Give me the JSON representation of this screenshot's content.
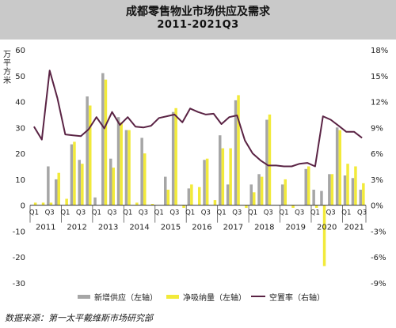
{
  "title": "成都零售物业市场供应及需求",
  "subtitle": "2011-2021Q3",
  "unit_label": "万平方米",
  "source": "数据来源：第一太平戴维斯市场研究部",
  "colors": {
    "header_bg": "#c9c9c9",
    "supply": "#a6a6a6",
    "absorption": "#f2ea3a",
    "vacancy": "#5a2344"
  },
  "legend": {
    "supply": "新增供应（左轴）",
    "absorption": "净吸纳量（左轴）",
    "vacancy": "空置率（右轴）"
  },
  "chart_data": {
    "type": "bar",
    "title": "成都零售物业市场供应及需求",
    "subtitle": "2011-2021Q3",
    "ylabel": "万平方米",
    "ylim": [
      -30,
      60
    ],
    "y_ticks": [
      -30,
      -20,
      -10,
      0,
      10,
      20,
      30,
      40,
      50,
      60
    ],
    "y2lim": [
      -9,
      18
    ],
    "y2_ticks": [
      "-9%",
      "-6%",
      "-3%",
      "0%",
      "3%",
      "6%",
      "9%",
      "12%",
      "15%",
      "18%"
    ],
    "quarter_labels": [
      "Q1",
      "Q3"
    ],
    "years": [
      "2011",
      "2012",
      "2013",
      "2014",
      "2015",
      "2016",
      "2017",
      "2018",
      "2019",
      "2020",
      "2021"
    ],
    "categories": [
      "2011Q1",
      "2011Q2",
      "2011Q3",
      "2011Q4",
      "2012Q1",
      "2012Q2",
      "2012Q3",
      "2012Q4",
      "2013Q1",
      "2013Q2",
      "2013Q3",
      "2013Q4",
      "2014Q1",
      "2014Q2",
      "2014Q3",
      "2014Q4",
      "2015Q1",
      "2015Q2",
      "2015Q3",
      "2015Q4",
      "2016Q1",
      "2016Q2",
      "2016Q3",
      "2016Q4",
      "2017Q1",
      "2017Q2",
      "2017Q3",
      "2017Q4",
      "2018Q1",
      "2018Q2",
      "2018Q3",
      "2018Q4",
      "2019Q1",
      "2019Q2",
      "2019Q3",
      "2019Q4",
      "2020Q1",
      "2020Q2",
      "2020Q3",
      "2020Q4",
      "2021Q1",
      "2021Q2",
      "2021Q3"
    ],
    "series": [
      {
        "name": "新增供应（左轴）",
        "type": "bar",
        "axis": "left",
        "values": [
          0,
          0,
          15,
          10,
          0,
          23.5,
          17.5,
          42,
          3,
          51,
          18,
          34,
          29,
          0,
          26,
          0,
          0,
          11,
          36,
          0,
          6.5,
          0,
          17.5,
          0,
          27,
          8,
          40.5,
          0,
          8,
          12,
          33,
          0,
          8,
          0,
          0,
          14,
          6,
          5.5,
          12,
          30,
          11.5,
          10.5,
          6
        ]
      },
      {
        "name": "净吸纳量（左轴）",
        "type": "bar",
        "axis": "left",
        "values": [
          1,
          1,
          1,
          12.5,
          2.5,
          24.5,
          16,
          38.5,
          0,
          48.5,
          14.5,
          32,
          29,
          1,
          20,
          0.5,
          0,
          6,
          37.5,
          -1,
          8,
          7,
          18,
          2,
          22,
          22,
          42.5,
          -1,
          5,
          11,
          35,
          0,
          10,
          -1,
          0,
          15,
          -1,
          -23.5,
          12,
          29,
          16,
          15,
          8.5
        ]
      },
      {
        "name": "空置率（右轴）",
        "type": "line",
        "axis": "right",
        "values": [
          9.1,
          7.6,
          15.6,
          12.4,
          8.2,
          8.1,
          8.0,
          8.8,
          10.2,
          8.9,
          10.8,
          9.3,
          10.2,
          9.1,
          9.0,
          9.2,
          10.1,
          10.3,
          10.5,
          9.6,
          11.2,
          10.8,
          10.5,
          10.6,
          9.4,
          10.2,
          10.4,
          7.5,
          6.0,
          5.2,
          4.6,
          4.6,
          4.5,
          4.5,
          4.8,
          4.9,
          4.5,
          10.3,
          9.9,
          9.2,
          8.5,
          8.5,
          7.8
        ]
      }
    ]
  }
}
